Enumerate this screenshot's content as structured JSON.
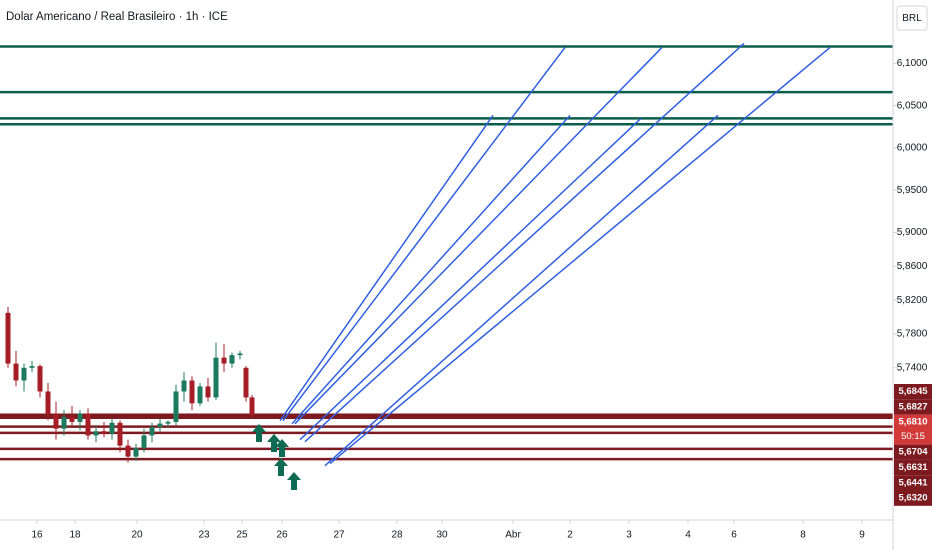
{
  "chart_data": {
    "type": "candlestick",
    "title": "Dolar Americano / Real Brasileiro · 1h · ICE",
    "currency": "BRL",
    "xlim": [
      0,
      89.3
    ],
    "ylim": [
      5.56,
      6.175
    ],
    "xticks": [
      {
        "value": 3.7,
        "label": "16"
      },
      {
        "value": 7.5,
        "label": "18"
      },
      {
        "value": 13.7,
        "label": "20"
      },
      {
        "value": 20.4,
        "label": "23"
      },
      {
        "value": 24.2,
        "label": "25"
      },
      {
        "value": 28.2,
        "label": "26"
      },
      {
        "value": 33.9,
        "label": "27"
      },
      {
        "value": 39.7,
        "label": "28"
      },
      {
        "value": 44.2,
        "label": "30"
      },
      {
        "value": 51.3,
        "label": "Abr"
      },
      {
        "value": 57.0,
        "label": "2"
      },
      {
        "value": 62.9,
        "label": "3"
      },
      {
        "value": 68.8,
        "label": "4"
      },
      {
        "value": 73.4,
        "label": "6"
      },
      {
        "value": 80.3,
        "label": "8"
      },
      {
        "value": 86.2,
        "label": "9"
      }
    ],
    "yticks": [
      {
        "value": 6.1,
        "label": "6,1000"
      },
      {
        "value": 6.05,
        "label": "6,0500"
      },
      {
        "value": 6.0,
        "label": "6,0000"
      },
      {
        "value": 5.95,
        "label": "5,9500"
      },
      {
        "value": 5.9,
        "label": "5,9000"
      },
      {
        "value": 5.86,
        "label": "5,8600"
      },
      {
        "value": 5.82,
        "label": "5,8200"
      },
      {
        "value": 5.78,
        "label": "5,7800"
      },
      {
        "value": 5.74,
        "label": "5,7400"
      }
    ],
    "series": [
      {
        "up_color": "#1e7a5e",
        "down_color": "#a51d26",
        "x": [
          0.8,
          1.6,
          2.4,
          3.2,
          4.0,
          4.8,
          5.6,
          6.4,
          7.2,
          8.0,
          8.8,
          9.6,
          10.4,
          11.2,
          12.0,
          12.8,
          13.6,
          14.4,
          15.2,
          16.0,
          16.8,
          17.6,
          18.4,
          19.2,
          20.0,
          20.8,
          21.6,
          22.4,
          23.2,
          24.0,
          24.6,
          25.2
        ],
        "open": [
          5.805,
          5.745,
          5.725,
          5.74,
          5.742,
          5.712,
          5.685,
          5.668,
          5.682,
          5.676,
          5.686,
          5.66,
          5.665,
          5.662,
          5.675,
          5.648,
          5.635,
          5.645,
          5.66,
          5.67,
          5.674,
          5.676,
          5.712,
          5.725,
          5.698,
          5.718,
          5.705,
          5.752,
          5.745,
          5.755,
          5.74,
          5.705
        ],
        "high": [
          5.812,
          5.76,
          5.745,
          5.748,
          5.744,
          5.722,
          5.7,
          5.69,
          5.695,
          5.69,
          5.692,
          5.672,
          5.676,
          5.68,
          5.678,
          5.655,
          5.65,
          5.668,
          5.675,
          5.68,
          5.678,
          5.72,
          5.735,
          5.73,
          5.722,
          5.728,
          5.77,
          5.768,
          5.758,
          5.76,
          5.742,
          5.708
        ],
        "low": [
          5.74,
          5.718,
          5.712,
          5.735,
          5.705,
          5.678,
          5.655,
          5.66,
          5.672,
          5.666,
          5.655,
          5.652,
          5.658,
          5.655,
          5.64,
          5.628,
          5.63,
          5.64,
          5.652,
          5.664,
          5.67,
          5.672,
          5.7,
          5.69,
          5.695,
          5.7,
          5.702,
          5.735,
          5.74,
          5.75,
          5.7,
          5.68
        ],
        "close": [
          5.745,
          5.725,
          5.74,
          5.742,
          5.712,
          5.685,
          5.668,
          5.682,
          5.676,
          5.686,
          5.66,
          5.665,
          5.662,
          5.675,
          5.648,
          5.635,
          5.645,
          5.66,
          5.67,
          5.674,
          5.676,
          5.712,
          5.725,
          5.698,
          5.718,
          5.705,
          5.752,
          5.745,
          5.755,
          5.757,
          5.705,
          5.684
        ]
      }
    ],
    "resistance_lines": {
      "color": "#0b5e4a",
      "values": [
        6.12,
        6.066,
        6.035,
        6.028
      ]
    },
    "support_lines": {
      "color": "#7d1a1f",
      "current_color": "#d23a3a",
      "current": 2,
      "values": [
        {
          "value": 5.6845,
          "label": "5,6845"
        },
        {
          "value": 5.6827,
          "label": "5,6827"
        },
        {
          "value": 5.681,
          "label": "5,6810"
        },
        {
          "value": 5.6704,
          "label": "5,6704"
        },
        {
          "value": 5.6631,
          "label": "5,6631"
        },
        {
          "value": 5.6441,
          "label": "5,6441"
        },
        {
          "value": 5.632,
          "label": "5,6320"
        }
      ]
    },
    "countdown": "50:15",
    "trend_lines": {
      "color": "#2f5fe0",
      "x1": [
        28.0,
        28.3,
        29.2,
        29.5,
        30.0,
        30.5,
        32.5,
        33.0
      ],
      "y1": [
        5.6774,
        5.6774,
        5.6739,
        5.6739,
        5.655,
        5.6526,
        5.6243,
        5.6267
      ],
      "x2": [
        49.3,
        56.5,
        57.0,
        66.2,
        64.1,
        74.4,
        71.8,
        83.0
      ],
      "y2": [
        6.0386,
        6.1189,
        6.0386,
        6.1189,
        6.0351,
        6.1236,
        6.0386,
        6.1189
      ]
    }
  }
}
